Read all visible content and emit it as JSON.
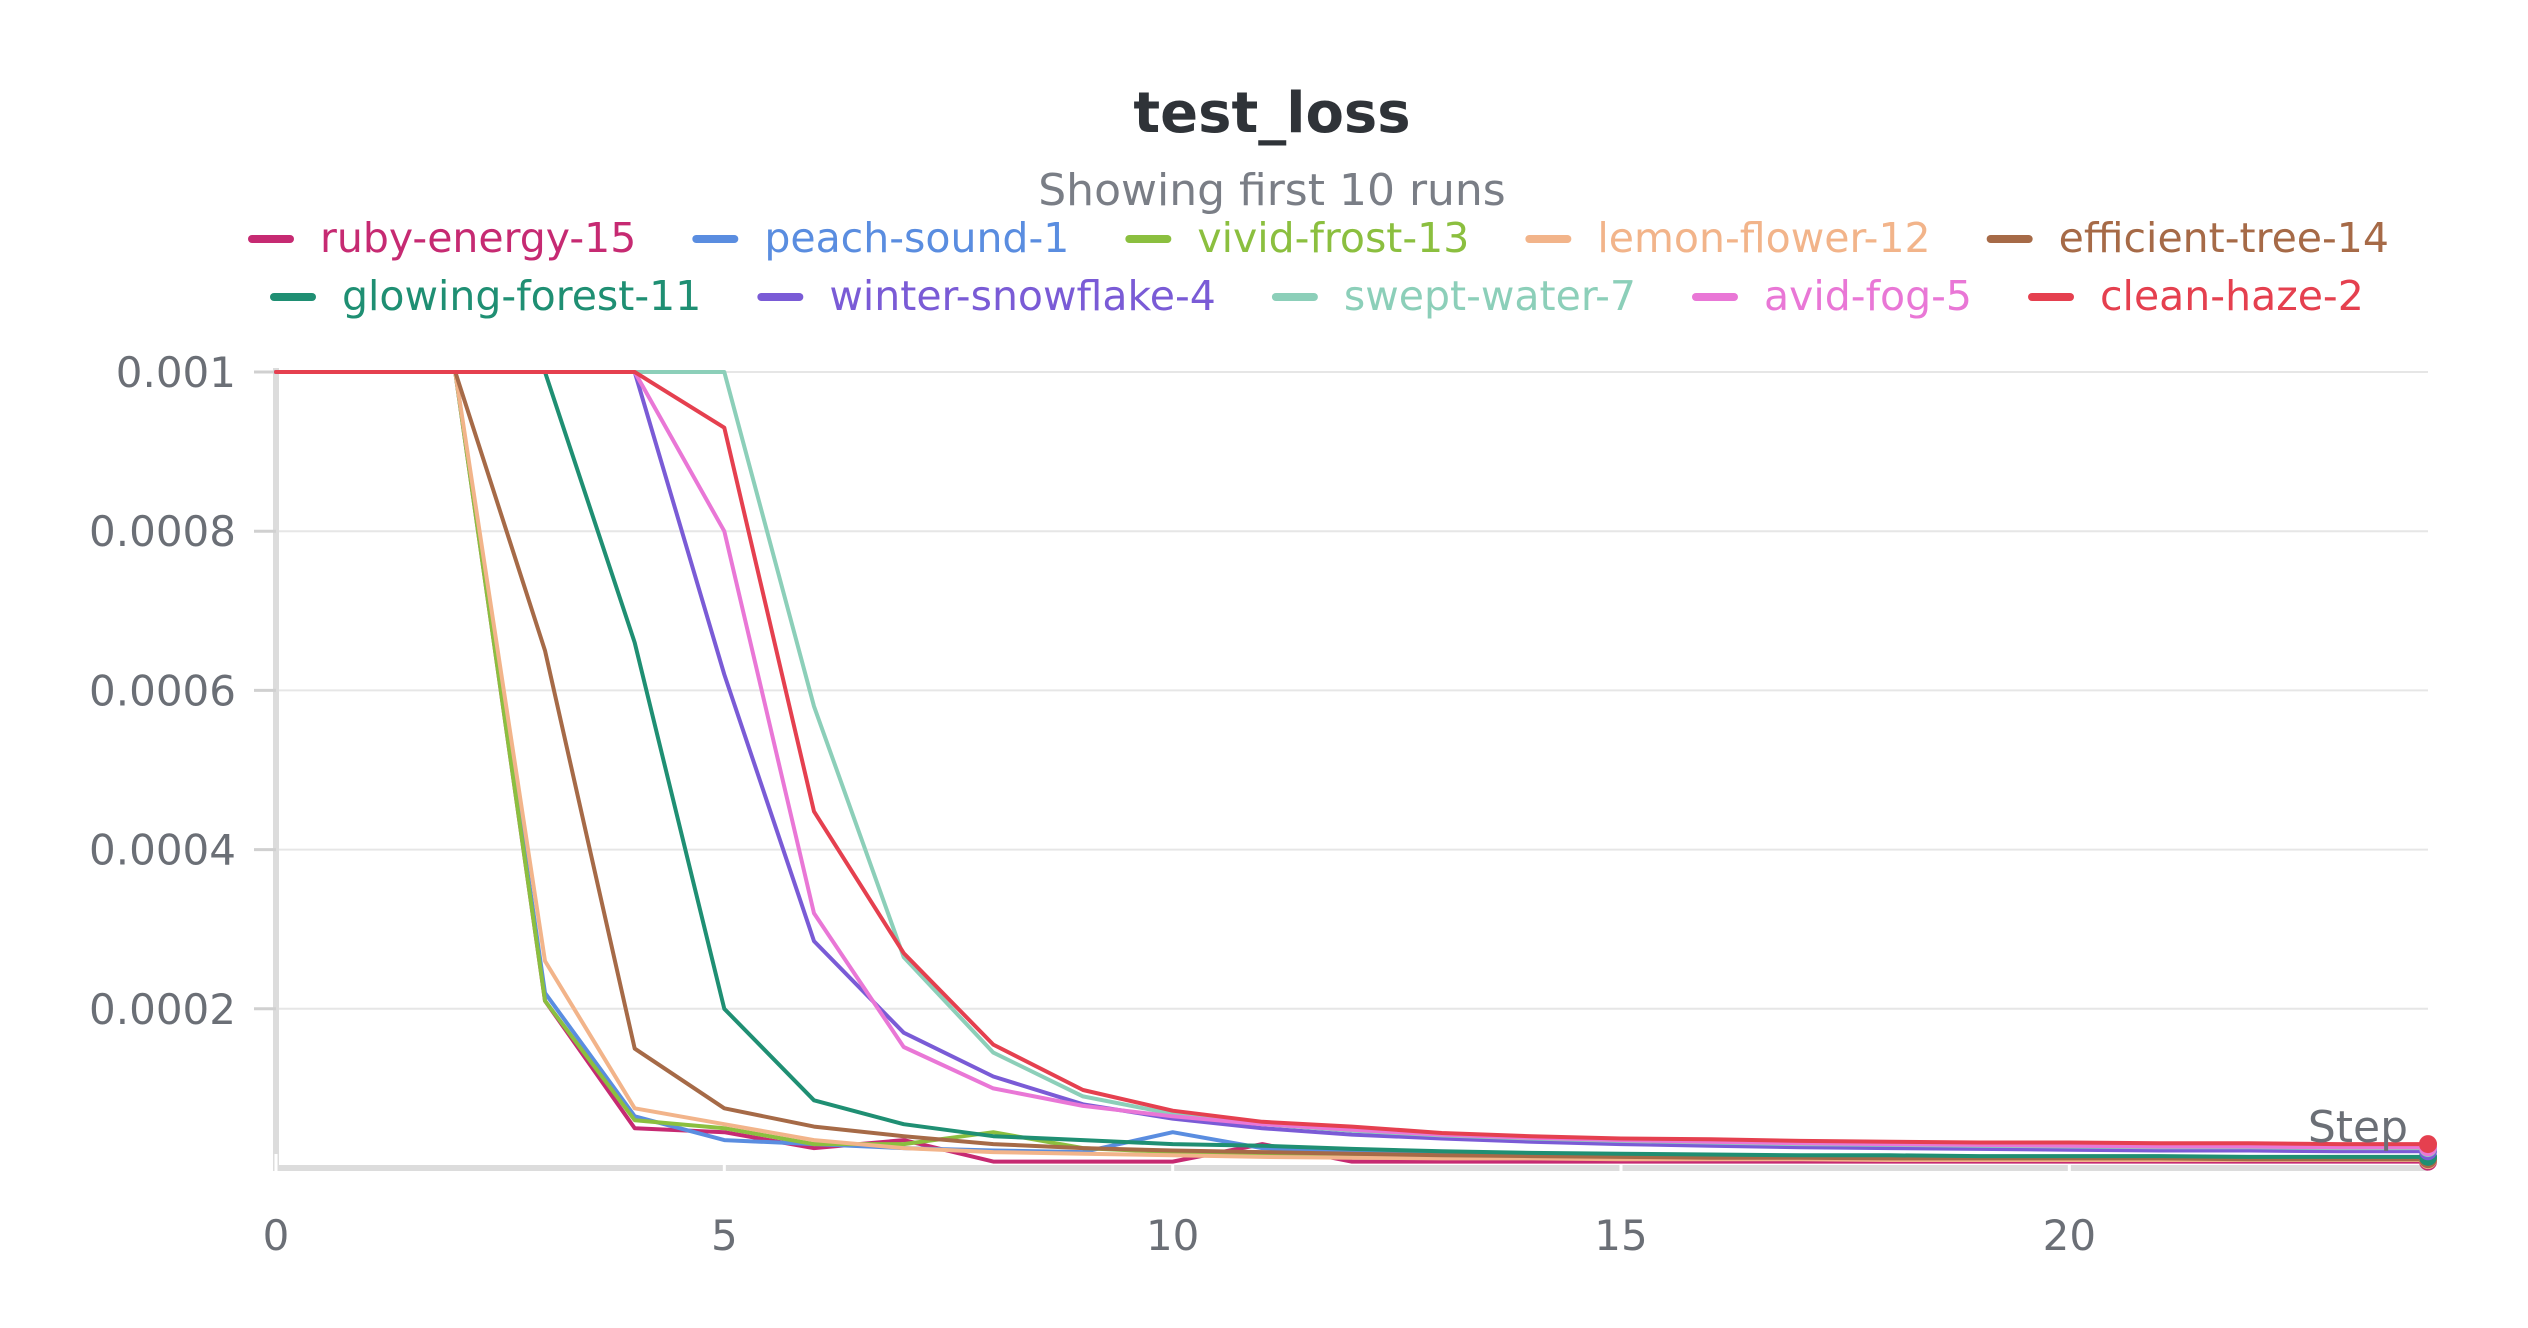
{
  "chart_data": {
    "type": "line",
    "title": "test_loss",
    "subtitle": "Showing first 10 runs",
    "xlabel": "Step",
    "ylabel": "",
    "xlim": [
      0,
      24
    ],
    "ylim": [
      0,
      0.001
    ],
    "x_ticks": [
      0,
      5,
      10,
      15,
      20
    ],
    "x_tick_labels": [
      "0",
      "5",
      "10",
      "15",
      "20"
    ],
    "y_ticks": [
      0.0002,
      0.0004,
      0.0006,
      0.0008,
      0.001
    ],
    "y_tick_labels": [
      "0.0002",
      "0.0004",
      "0.0006",
      "0.0008",
      "0.001"
    ],
    "grid": true,
    "legend_position": "top",
    "x": [
      0,
      1,
      2,
      3,
      4,
      5,
      6,
      7,
      8,
      9,
      10,
      11,
      12,
      13,
      14,
      15,
      16,
      17,
      18,
      19,
      20,
      21,
      22,
      23,
      24
    ],
    "series": [
      {
        "name": "ruby-energy-15",
        "color": "#c62a72",
        "values": [
          0.001,
          0.001,
          0.001,
          0.00021,
          5e-05,
          4.5e-05,
          2.5e-05,
          3.5e-05,
          8e-06,
          8e-06,
          8e-06,
          3e-05,
          8e-06,
          8e-06,
          8e-06,
          8e-06,
          8e-06,
          8e-06,
          8e-06,
          8e-06,
          8e-06,
          8e-06,
          8e-06,
          8e-06,
          8e-06
        ]
      },
      {
        "name": "peach-sound-1",
        "color": "#5a8de0",
        "values": [
          0.001,
          0.001,
          0.001,
          0.00022,
          6.5e-05,
          3.5e-05,
          3e-05,
          2.5e-05,
          2.2e-05,
          2e-05,
          4.5e-05,
          2.5e-05,
          2e-05,
          1.8e-05,
          1.6e-05,
          1.5e-05,
          1.5e-05,
          1.4e-05,
          1.4e-05,
          1.4e-05,
          1.4e-05,
          1.4e-05,
          1.3e-05,
          1.3e-05,
          1.3e-05
        ]
      },
      {
        "name": "vivid-frost-13",
        "color": "#8bbf3f",
        "values": [
          0.001,
          0.001,
          0.001,
          0.00021,
          6e-05,
          5e-05,
          3e-05,
          3e-05,
          4.5e-05,
          2.5e-05,
          2e-05,
          1.8e-05,
          1.6e-05,
          1.5e-05,
          1.4e-05,
          1.3e-05,
          1.2e-05,
          1.2e-05,
          1.2e-05,
          1.1e-05,
          1.1e-05,
          1.1e-05,
          1.1e-05,
          1.1e-05,
          1.1e-05
        ]
      },
      {
        "name": "lemon-flower-12",
        "color": "#f2b48a",
        "values": [
          0.001,
          0.001,
          0.001,
          0.00026,
          7.5e-05,
          5.5e-05,
          3.5e-05,
          2.5e-05,
          2e-05,
          1.8e-05,
          1.6e-05,
          1.4e-05,
          1.3e-05,
          1.2e-05,
          1.2e-05,
          1.1e-05,
          1.1e-05,
          1.1e-05,
          1e-05,
          1e-05,
          1e-05,
          1e-05,
          1e-05,
          1e-05,
          1e-05
        ]
      },
      {
        "name": "efficient-tree-14",
        "color": "#a66a47",
        "values": [
          0.001,
          0.001,
          0.001,
          0.00065,
          0.00015,
          7.5e-05,
          5.2e-05,
          4e-05,
          3e-05,
          2.5e-05,
          2.2e-05,
          2e-05,
          1.8e-05,
          1.6e-05,
          1.5e-05,
          1.4e-05,
          1.3e-05,
          1.3e-05,
          1.2e-05,
          1.2e-05,
          1.2e-05,
          1.2e-05,
          1.1e-05,
          1.1e-05,
          1.1e-05
        ]
      },
      {
        "name": "glowing-forest-11",
        "color": "#1f8f73",
        "values": [
          0.001,
          0.001,
          0.001,
          0.001,
          0.00066,
          0.0002,
          8.5e-05,
          5.5e-05,
          4e-05,
          3.5e-05,
          3e-05,
          2.8e-05,
          2.4e-05,
          2.1e-05,
          1.9e-05,
          1.8e-05,
          1.7e-05,
          1.6e-05,
          1.6e-05,
          1.5e-05,
          1.5e-05,
          1.5e-05,
          1.4e-05,
          1.4e-05,
          1.4e-05
        ]
      },
      {
        "name": "winter-snowflake-4",
        "color": "#7a5bd6",
        "values": [
          0.001,
          0.001,
          0.001,
          0.001,
          0.001,
          0.00062,
          0.000285,
          0.00017,
          0.000115,
          8e-05,
          6.2e-05,
          5e-05,
          4.2e-05,
          3.7e-05,
          3.3e-05,
          3e-05,
          2.8e-05,
          2.6e-05,
          2.5e-05,
          2.4e-05,
          2.3e-05,
          2.2e-05,
          2.2e-05,
          2.1e-05,
          2.1e-05
        ]
      },
      {
        "name": "swept-water-7",
        "color": "#8ccfb9",
        "values": [
          0.001,
          0.001,
          0.001,
          0.001,
          0.001,
          0.001,
          0.00058,
          0.000265,
          0.000145,
          9e-05,
          6.8e-05,
          5.5e-05,
          4.7e-05,
          4.1e-05,
          3.7e-05,
          3.4e-05,
          3.2e-05,
          3e-05,
          2.9e-05,
          2.8e-05,
          2.7e-05,
          2.6e-05,
          2.6e-05,
          2.5e-05,
          2.5e-05
        ]
      },
      {
        "name": "avid-fog-5",
        "color": "#e977d6",
        "values": [
          0.001,
          0.001,
          0.001,
          0.001,
          0.001,
          0.0008,
          0.00032,
          0.000152,
          0.0001,
          7.8e-05,
          6.5e-05,
          5.5e-05,
          4.8e-05,
          4.2e-05,
          3.8e-05,
          3.5e-05,
          3.3e-05,
          3.1e-05,
          3e-05,
          2.9e-05,
          2.8e-05,
          2.7e-05,
          2.7e-05,
          2.6e-05,
          2.6e-05
        ]
      },
      {
        "name": "clean-haze-2",
        "color": "#e5404f",
        "values": [
          0.001,
          0.001,
          0.001,
          0.001,
          0.001,
          0.00093,
          0.000448,
          0.00027,
          0.000155,
          9.8e-05,
          7.2e-05,
          5.8e-05,
          5.2e-05,
          4.4e-05,
          4e-05,
          3.7e-05,
          3.6e-05,
          3.4e-05,
          3.3e-05,
          3.2e-05,
          3.2e-05,
          3.1e-05,
          3.1e-05,
          3e-05,
          3e-05
        ]
      }
    ]
  }
}
